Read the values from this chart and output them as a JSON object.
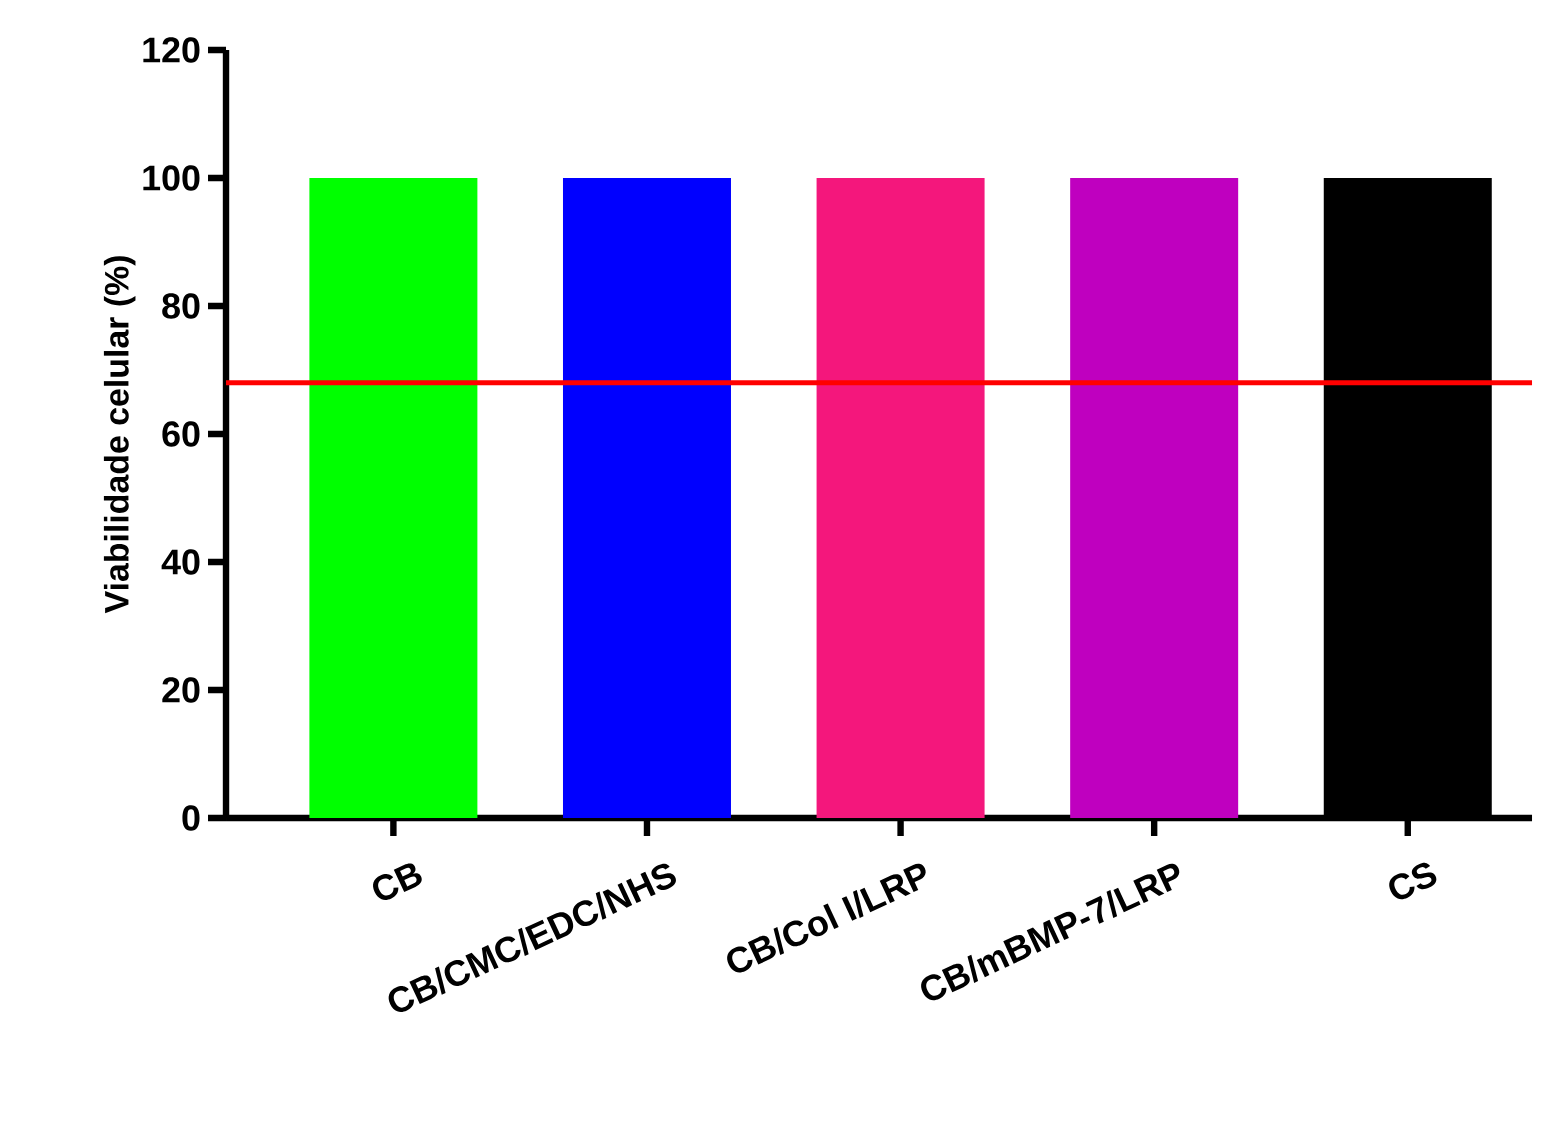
{
  "chart_data": {
    "type": "bar",
    "ylabel": "Viabilidade celular  (%)",
    "categories": [
      "CB",
      "CB/CMC/EDC/NHS",
      "CB/Col I/LRP",
      "CB/mBMP-7/LRP",
      "CS"
    ],
    "values": [
      100,
      100,
      100,
      100,
      100
    ],
    "colors": [
      "#00ff00",
      "#0000ff",
      "#f4177c",
      "#bf00bf",
      "#000000"
    ],
    "ylim": [
      0,
      120
    ],
    "yticks": [
      0,
      20,
      40,
      60,
      80,
      100,
      120
    ],
    "ref_lines": [
      {
        "axis": "y",
        "value": 68,
        "color": "#ff0000"
      }
    ]
  }
}
